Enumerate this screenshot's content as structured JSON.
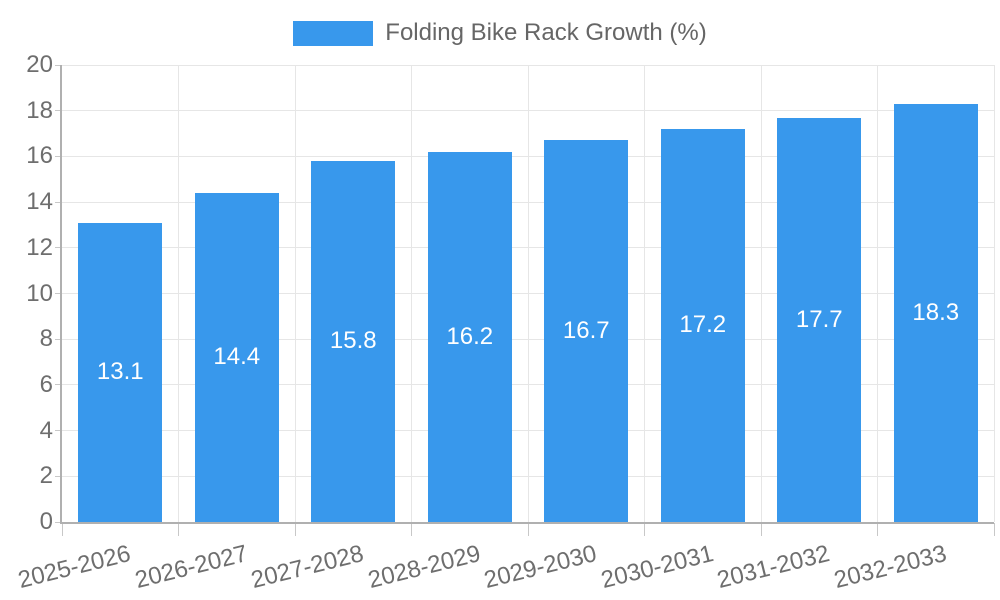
{
  "chart_data": {
    "type": "bar",
    "series_name": "Folding Bike Rack Growth (%)",
    "categories": [
      "2025-2026",
      "2026-2027",
      "2027-2028",
      "2028-2029",
      "2029-2030",
      "2030-2031",
      "2031-2032",
      "2032-2033"
    ],
    "values": [
      13.1,
      14.4,
      15.8,
      16.2,
      16.7,
      17.2,
      17.7,
      18.3
    ],
    "value_label_decimals": 1,
    "value_label_position": "inside-center",
    "ylim": [
      0,
      20
    ],
    "ytick_step": 2,
    "grid": true,
    "legend_position": "top",
    "x_label_rotation_deg": -14,
    "colors": {
      "bar": "#3898ec",
      "value_label": "#ffffff",
      "axis_text": "#6e6e6e",
      "legend_text": "#666666",
      "grid_line": "#e6e6e6",
      "axis_line": "#b0b0b0",
      "tick_mark": "#c8c8c8"
    }
  }
}
